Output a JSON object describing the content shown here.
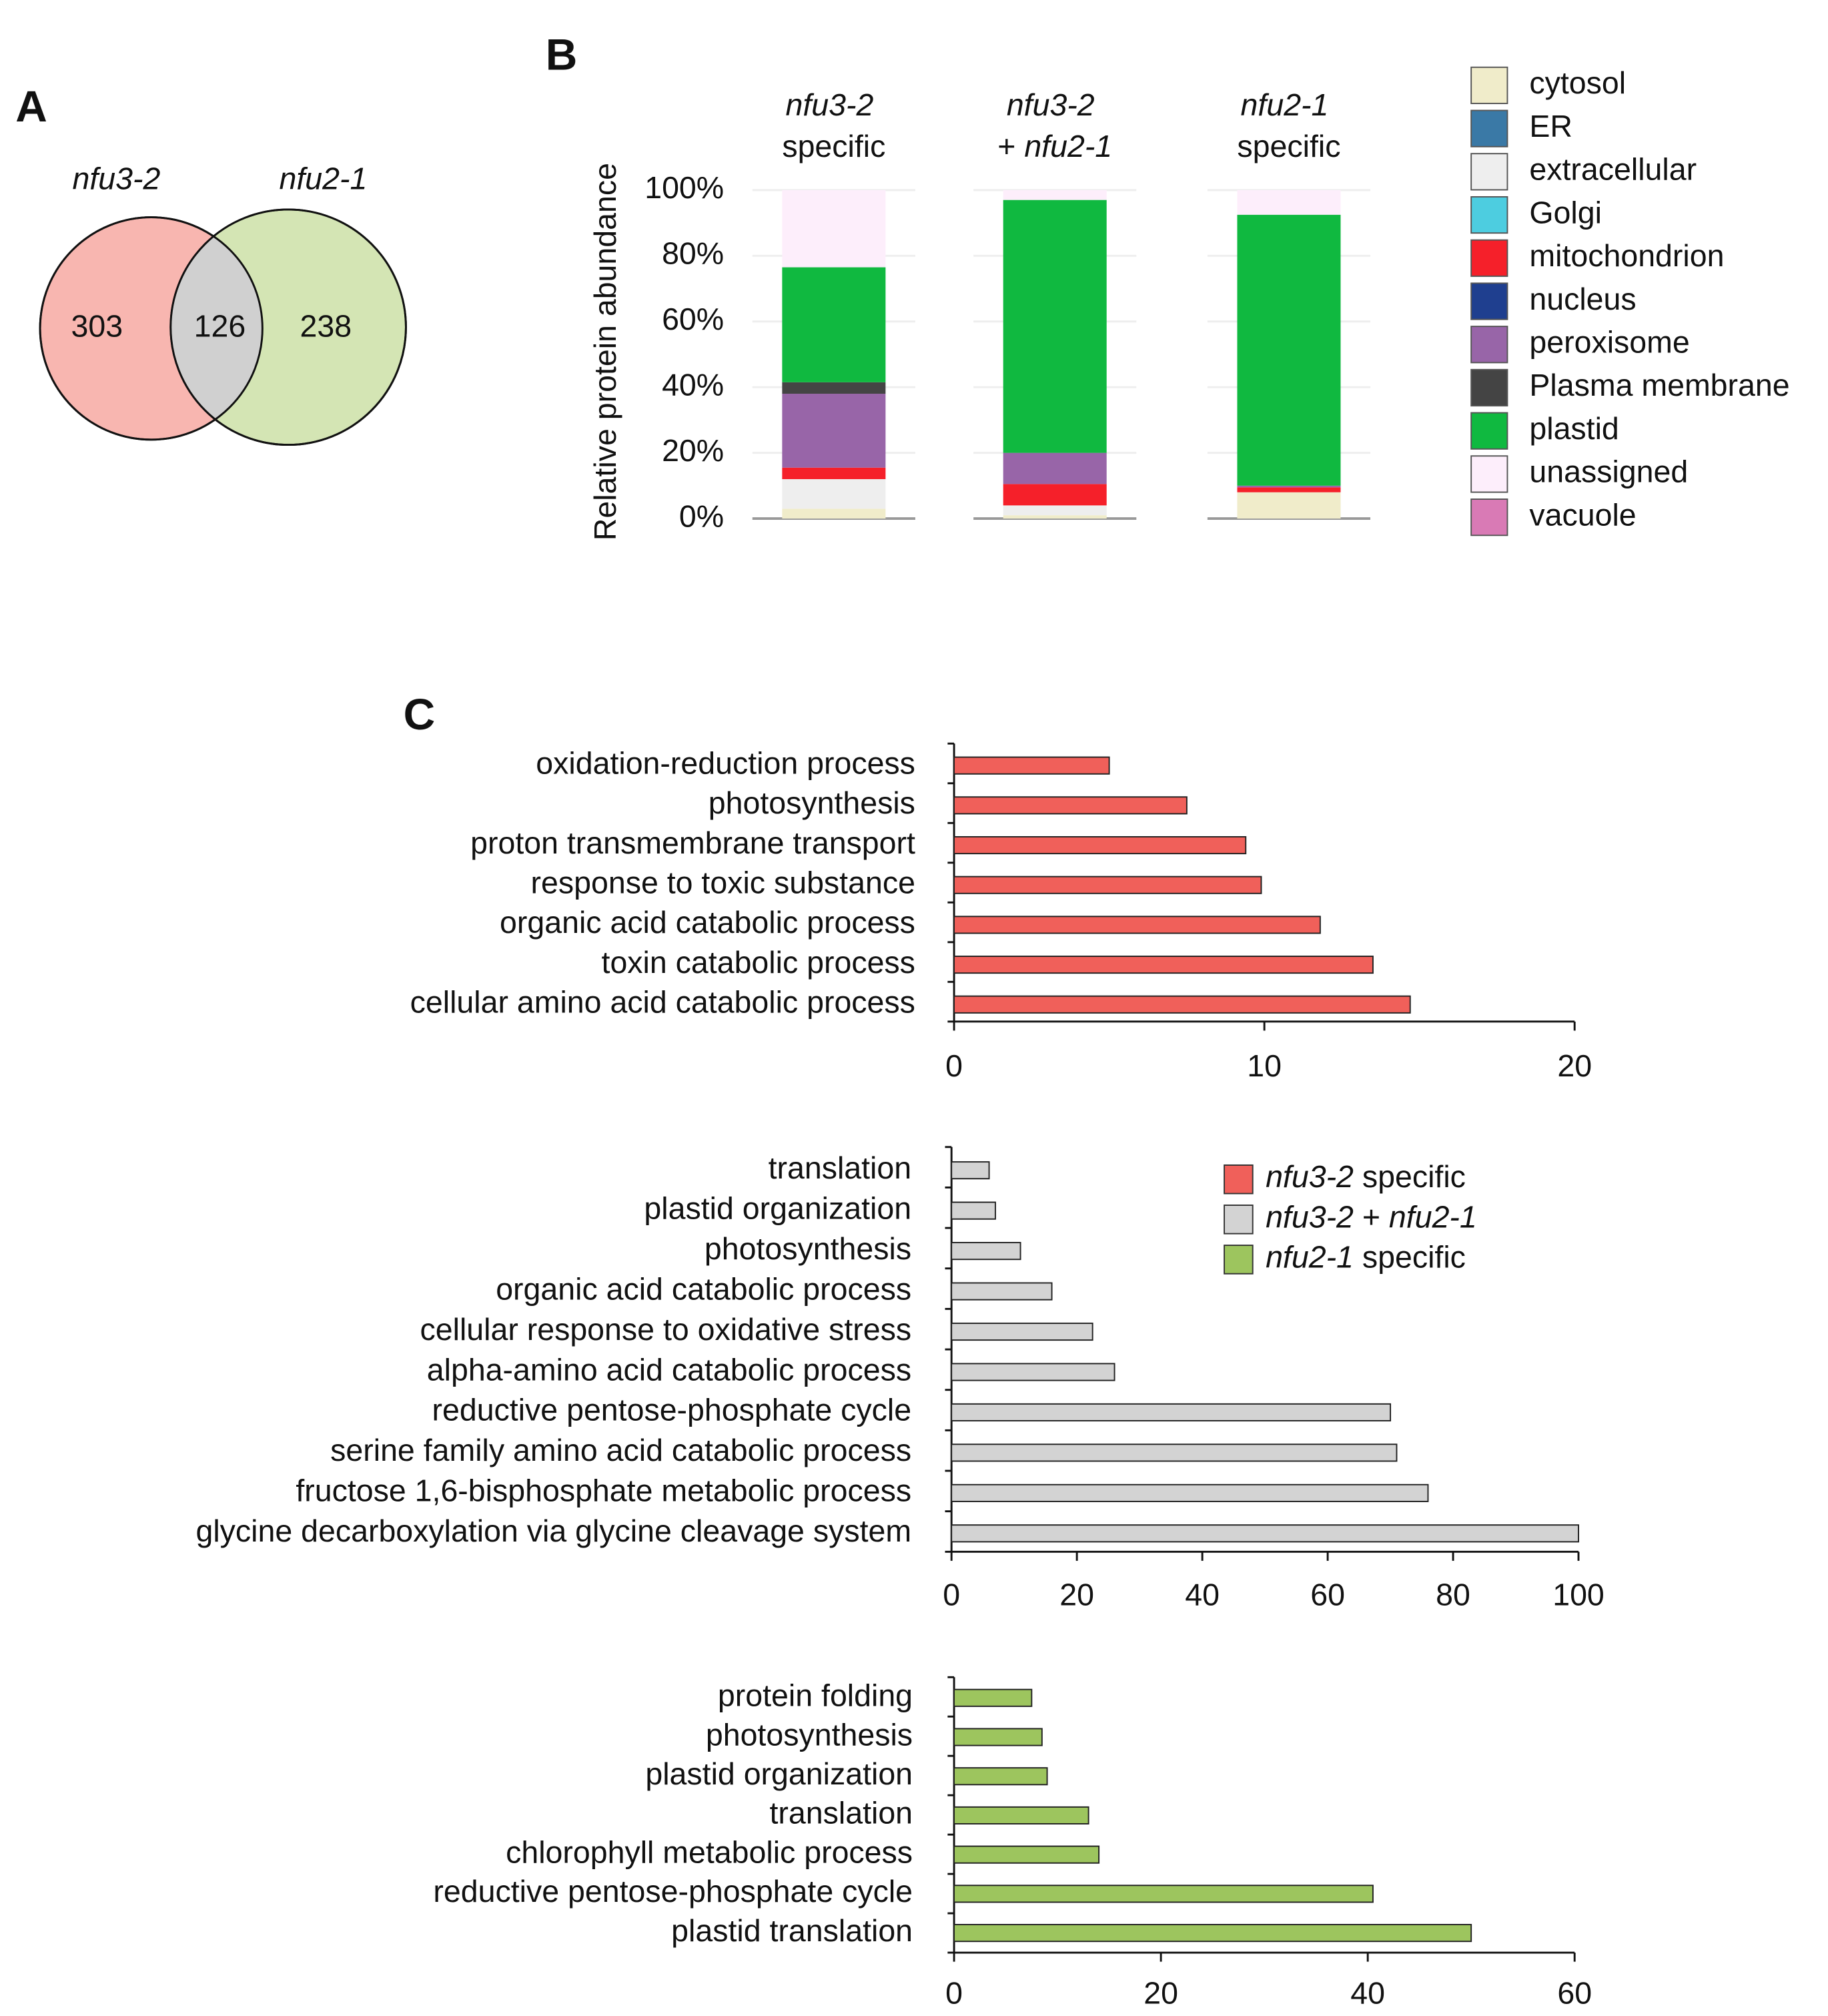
{
  "chart_data": [
    {
      "type": "venn",
      "label": "A",
      "sets": [
        "nfu3-2",
        "nfu2-1"
      ],
      "values": [
        303,
        126,
        238
      ],
      "colors": [
        "#f8b6b0",
        "#d4e5b4",
        "#d0d0d0"
      ]
    },
    {
      "type": "stacked_bar",
      "label": "B",
      "ylabel": "Relative protein abundance",
      "categories": [
        "nfu3-2 specific",
        "nfu3-2 + nfu2-1",
        "nfu2-1 specific"
      ],
      "ylim": [
        0,
        100
      ],
      "yticks": [
        {
          "value": 0,
          "label": "0%"
        },
        {
          "value": 20,
          "label": "20%"
        },
        {
          "value": 40,
          "label": "40%"
        },
        {
          "value": 60,
          "label": "60%"
        },
        {
          "value": 80,
          "label": "80%"
        },
        {
          "value": 100,
          "label": "100%"
        }
      ],
      "grid": true,
      "series": [
        {
          "name": "cytosol",
          "color": "#f0ecca",
          "values": [
            3,
            1,
            8
          ]
        },
        {
          "name": "ER",
          "color": "#3a79a6",
          "values": [
            0,
            0,
            0
          ]
        },
        {
          "name": "extracellular",
          "color": "#eeeeee",
          "values": [
            9,
            3,
            0
          ]
        },
        {
          "name": "Golgi",
          "color": "#4dcde0",
          "values": [
            0,
            0,
            0
          ]
        },
        {
          "name": "mitochondrion",
          "color": "#f5202a",
          "values": [
            3.5,
            6.5,
            1.5
          ]
        },
        {
          "name": "nucleus",
          "color": "#1f3f8f",
          "values": [
            0,
            0,
            0
          ]
        },
        {
          "name": "peroxisome",
          "color": "#9865a8",
          "values": [
            22.5,
            9.5,
            0.5
          ]
        },
        {
          "name": "Plasma membrane",
          "color": "#444444",
          "values": [
            3.5,
            0,
            0
          ]
        },
        {
          "name": "plastid",
          "color": "#10b940",
          "values": [
            35,
            77,
            82.5
          ]
        },
        {
          "name": "unassigned",
          "color": "#fdeefb",
          "values": [
            23.5,
            3,
            7.5
          ]
        },
        {
          "name": "vacuole",
          "color": "#d97ab5",
          "values": [
            0,
            0,
            0
          ]
        }
      ]
    },
    {
      "type": "hbar",
      "label": "C",
      "categories": [
        "oxidation-reduction process",
        "photosynthesis",
        "proton transmembrane transport",
        "response to toxic substance",
        "organic acid catabolic process",
        "toxin catabolic process",
        "cellular amino acid catabolic process"
      ],
      "xlim": [
        0,
        20
      ],
      "xticks": [
        0,
        10,
        20
      ],
      "series": [
        {
          "name": "nfu3-2 specific",
          "color": "#f0605a",
          "values": [
            5,
            7.5,
            9.4,
            9.9,
            11.8,
            13.5,
            14.7
          ]
        }
      ]
    },
    {
      "type": "hbar",
      "categories": [
        "translation",
        "plastid organization",
        "photosynthesis",
        "organic acid catabolic process",
        "cellular response to oxidative stress",
        "alpha-amino acid catabolic process",
        "reductive pentose-phosphate cycle",
        "serine family amino acid catabolic process",
        "fructose 1,6-bisphosphate metabolic process",
        "glycine decarboxylation via glycine cleavage system"
      ],
      "xlim": [
        0,
        100
      ],
      "xticks": [
        0,
        20,
        40,
        60,
        80,
        100
      ],
      "series": [
        {
          "name": "nfu3-2 + nfu2-1",
          "color": "#d3d3d3",
          "values": [
            6,
            7,
            11,
            16,
            22.5,
            26,
            70,
            71,
            76,
            100
          ]
        }
      ]
    },
    {
      "type": "hbar",
      "categories": [
        "protein folding",
        "photosynthesis",
        "plastid organization",
        "translation",
        "chlorophyll metabolic process",
        "reductive pentose-phosphate cycle",
        "plastid translation"
      ],
      "xlim": [
        0,
        60
      ],
      "xticks": [
        0,
        20,
        40,
        60
      ],
      "series": [
        {
          "name": "nfu2-1 specific",
          "color": "#9dc55e",
          "values": [
            7.5,
            8.5,
            9,
            13,
            14,
            40.5,
            50
          ]
        }
      ]
    }
  ]
}
